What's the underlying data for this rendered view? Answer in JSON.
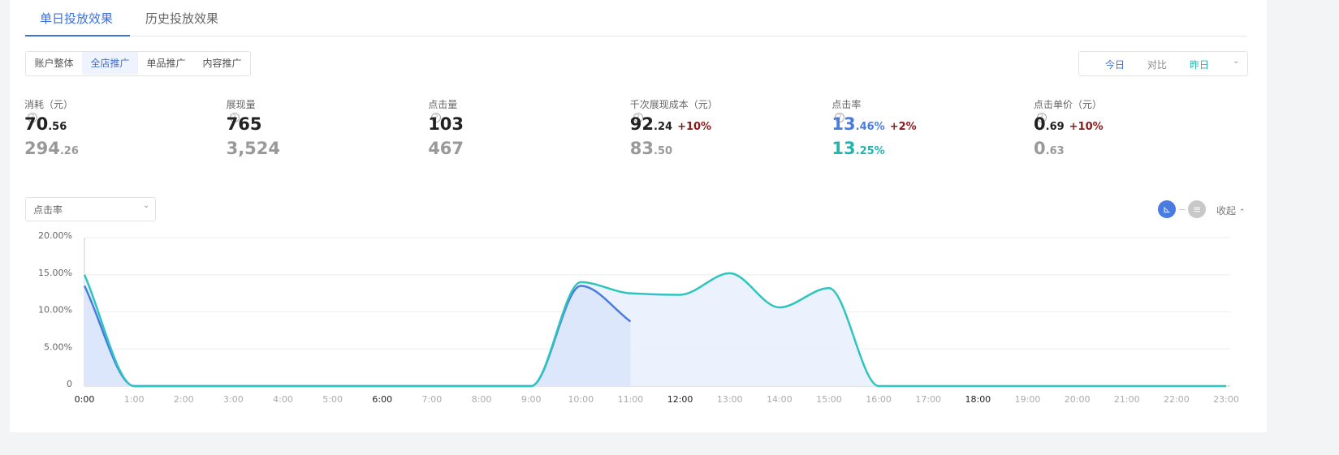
{
  "tabs": {
    "items": [
      "单日投放效果",
      "历史投放效果"
    ],
    "active": 0
  },
  "segments": {
    "items": [
      "账户整体",
      "全店推广",
      "单品推广",
      "内容推广"
    ],
    "active": 1
  },
  "date_controls": {
    "items": [
      "今日",
      "对比",
      "昨日"
    ],
    "colors": [
      "#3f6fd8",
      "#888888",
      "#22b5b0"
    ]
  },
  "metrics": [
    {
      "label": "消耗（元）",
      "current": "70.56",
      "previous": "294.26"
    },
    {
      "label": "展现量",
      "current": "765",
      "previous": "3,524"
    },
    {
      "label": "点击量",
      "current": "103",
      "previous": "467"
    },
    {
      "label": "千次展现成本（元）",
      "current": "92.24",
      "change": "+10%",
      "previous": "83.50"
    },
    {
      "label": "点击率",
      "current": "13.46%",
      "change": "+2%",
      "previous": "13.25%",
      "current_color": "#4a7be0",
      "previous_color": "#22b5b0"
    },
    {
      "label": "点击单价（元）",
      "current": "0.69",
      "change": "+10%",
      "previous": "0.63"
    }
  ],
  "dropdown": "点击率",
  "collapse": "收起",
  "chart_data": {
    "type": "line",
    "categories": [
      "0:00",
      "1:00",
      "2:00",
      "3:00",
      "4:00",
      "5:00",
      "6:00",
      "7:00",
      "8:00",
      "9:00",
      "10:00",
      "11:00",
      "12:00",
      "13:00",
      "14:00",
      "15:00",
      "16:00",
      "17:00",
      "18:00",
      "19:00",
      "20:00",
      "21:00",
      "22:00",
      "23:00"
    ],
    "series": [
      {
        "color": "#2ec4c0",
        "fill": "#e9effd",
        "values": [
          15,
          0,
          0,
          0,
          0,
          0,
          0,
          0,
          0,
          0,
          14,
          12.5,
          12.3,
          15.2,
          10.6,
          13.2,
          0,
          0,
          0,
          0,
          0,
          0,
          0,
          0
        ]
      },
      {
        "color": "#4a7be0",
        "fill": "#dbe6fb",
        "values": [
          13.5,
          0,
          0,
          0,
          0,
          0,
          0,
          0,
          0,
          0,
          13.5,
          8.7,
          null,
          null,
          null,
          null,
          null,
          null,
          null,
          null,
          null,
          null,
          null,
          null
        ]
      }
    ],
    "ylim": [
      0,
      20
    ],
    "yticks": [
      0,
      {
        "value": 5,
        "label": "5.00%"
      },
      {
        "value": 10,
        "label": "10.00%"
      },
      {
        "value": 15,
        "label": "15.00%"
      },
      {
        "value": 20,
        "label": "20.00%"
      }
    ],
    "grid": true
  }
}
